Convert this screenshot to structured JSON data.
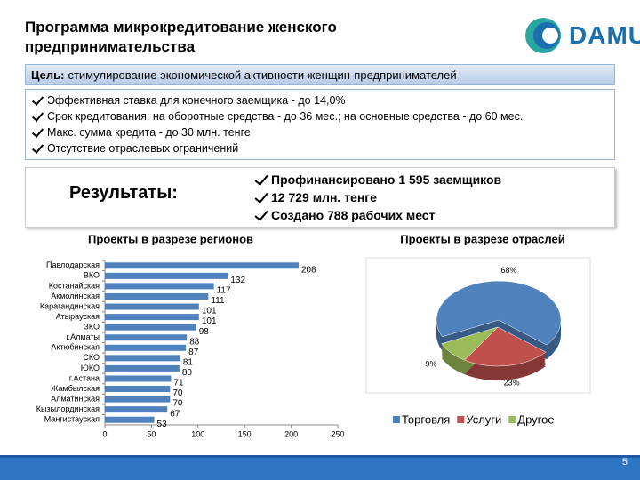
{
  "header": {
    "title": "Программа микрокредитование женского предпринимательства",
    "logo": "DAMU"
  },
  "goal": {
    "label": "Цель:",
    "text": "стимулирование экономической активности женщин-предпринимателей"
  },
  "conditions": [
    "Эффективная ставка для конечного заемщика - до 14,0%",
    "Срок кредитования: на оборотные средства - до 36 мес.; на основные средства - до 60 мес.",
    "Макс. сумма кредита - до 30 млн. тенге",
    "Отсутствие отраслевых ограничений"
  ],
  "results": {
    "title": "Результаты:",
    "items": [
      "Профинансировано 1 595 заемщиков",
      "12 729 млн. тенге",
      "Создано 788 рабочих мест"
    ]
  },
  "page_number": "5",
  "chart_data": [
    {
      "type": "bar",
      "orientation": "horizontal",
      "title": "Проекты в разрезе регионов",
      "categories": [
        "Павлодарская",
        "ВКО",
        "Костанайская",
        "Акмолинская",
        "Карагандинская",
        "Атырауская",
        "ЗКО",
        "г.Алматы",
        "Актюбинская",
        "СКО",
        "ЮКО",
        "г.Астана",
        "Жамбылская",
        "Алматинская",
        "Кызылординская",
        "Мангистауская"
      ],
      "values": [
        208,
        132,
        117,
        111,
        101,
        101,
        98,
        88,
        87,
        81,
        80,
        71,
        70,
        70,
        67,
        53
      ],
      "color": "#4f81bd",
      "xlim": [
        0,
        250
      ],
      "xticks": [
        0,
        50,
        100,
        150,
        200,
        250
      ]
    },
    {
      "type": "pie",
      "title": "Проекты в разрезе отраслей",
      "categories": [
        "Торговля",
        "Услуги",
        "Другое"
      ],
      "values": [
        68,
        23,
        9
      ],
      "value_labels": [
        "68%",
        "23%",
        "9%"
      ],
      "colors": [
        "#4f81bd",
        "#c0504d",
        "#9bbb59"
      ],
      "legend": "bottom"
    }
  ]
}
